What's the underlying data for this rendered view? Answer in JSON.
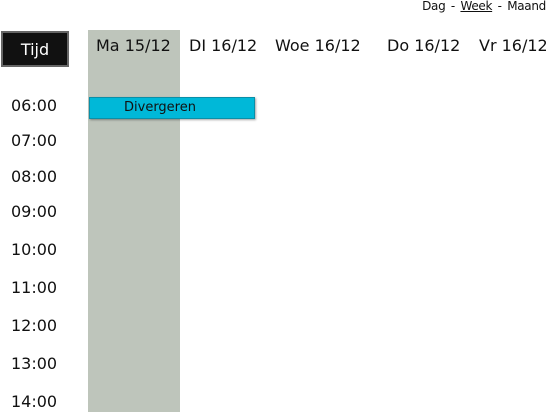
{
  "view_switch": {
    "day": "Dag",
    "week": "Week",
    "month": "Maand",
    "separator": "-",
    "active": "Week"
  },
  "header": {
    "time_column": "Tijd"
  },
  "days": [
    {
      "label": "Ma 15/12"
    },
    {
      "label": "DI 16/12"
    },
    {
      "label": "Woe 16/12"
    },
    {
      "label": "Do 16/12"
    },
    {
      "label": "Vr 16/12"
    }
  ],
  "times": [
    "06:00",
    "07:00",
    "08:00",
    "09:00",
    "10:00",
    "11:00",
    "12:00",
    "13:00",
    "14:00"
  ],
  "events": [
    {
      "title": "Divergeren",
      "day": "Ma 15/12",
      "start": "06:00"
    }
  ],
  "colors": {
    "today_column": "#bec5bb",
    "event": "#00b8d8",
    "header_bg": "#111111"
  }
}
